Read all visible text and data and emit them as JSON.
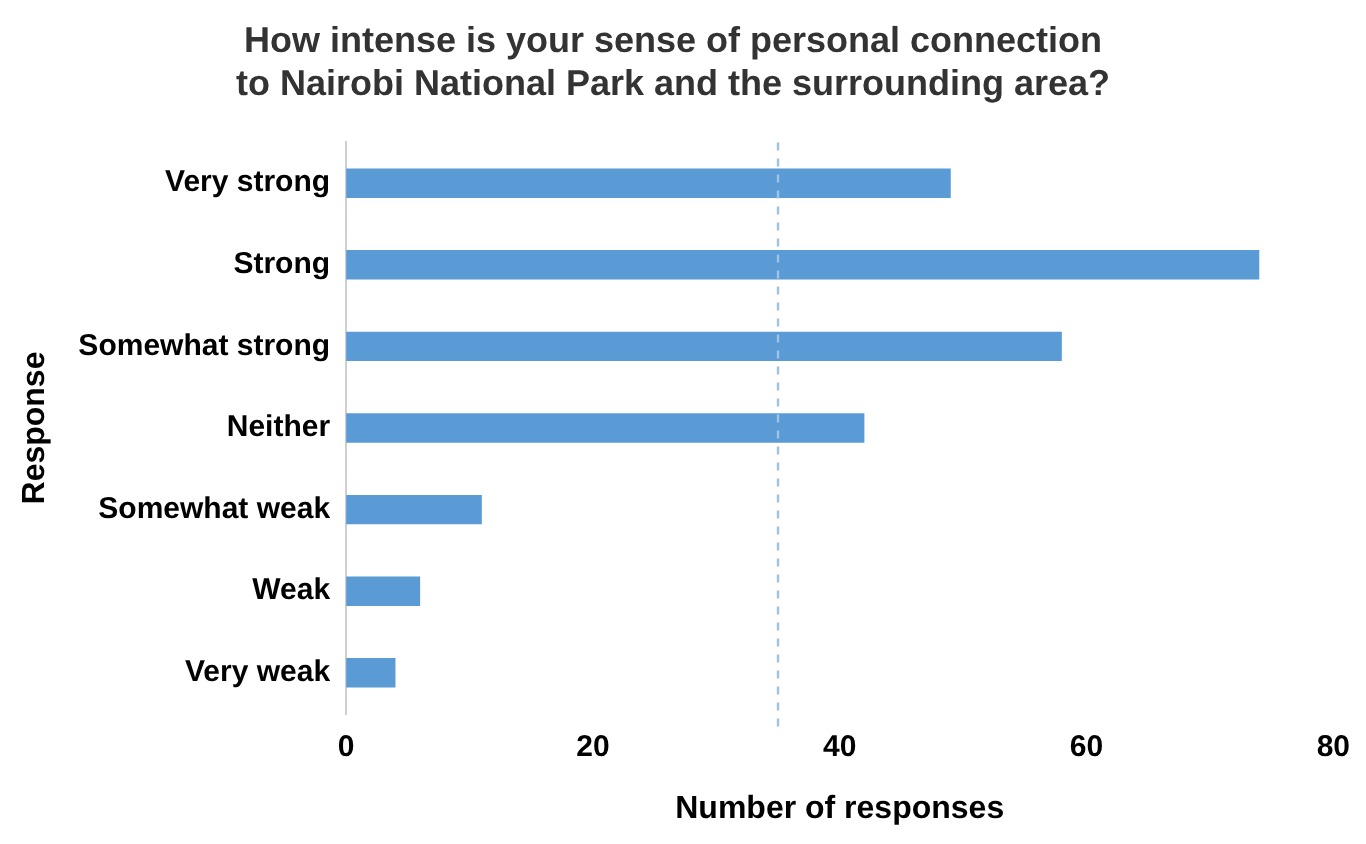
{
  "chart_data": {
    "type": "bar",
    "orientation": "horizontal",
    "title": "How intense is your sense of personal connection to Nairobi National Park and the surrounding area?",
    "xlabel": "Number of responses",
    "ylabel": "Response",
    "categories": [
      "Very strong",
      "Strong",
      "Somewhat strong",
      "Neither",
      "Somewhat weak",
      "Weak",
      "Very weak"
    ],
    "values": [
      49,
      74,
      58,
      42,
      11,
      6,
      4
    ],
    "color": "#5b9bd5",
    "xlim": [
      0,
      80
    ],
    "xticks": [
      0,
      20,
      40,
      60,
      80
    ],
    "grid": false,
    "legend": false,
    "ref_lines": [
      {
        "axis": "x",
        "value": 35,
        "color": "#9dc3e6",
        "line_style": "dashed"
      }
    ]
  }
}
